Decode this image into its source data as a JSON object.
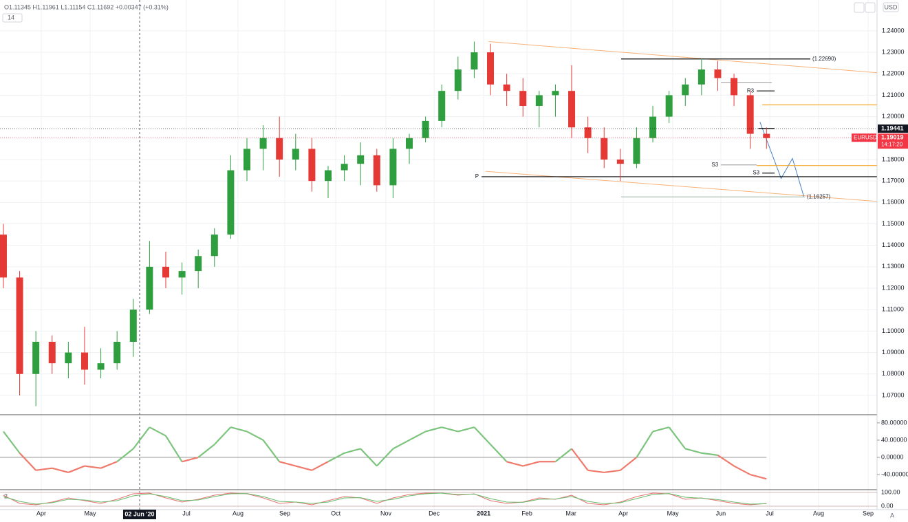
{
  "header": {
    "ohlc": "O1.11345 H1.11961 L1.11154 C1.11692 +0.00347 (+0.31%)",
    "length": "14",
    "currency": "USD",
    "auto": "A"
  },
  "chart_data": {
    "type": "candlestick",
    "symbol": "EURUSD",
    "countdown": "14:17:20",
    "up_color": "#2e9e3e",
    "down_color": "#e53935",
    "open": [
      1.145,
      1.125,
      1.08,
      1.095,
      1.085,
      1.09,
      1.082,
      1.085,
      1.095,
      1.11,
      1.13,
      1.125,
      1.128,
      1.135,
      1.145,
      1.175,
      1.185,
      1.19,
      1.18,
      1.185,
      1.17,
      1.175,
      1.178,
      1.182,
      1.168,
      1.185,
      1.19,
      1.198,
      1.212,
      1.222,
      1.23,
      1.215,
      1.212,
      1.205,
      1.21,
      1.212,
      1.195,
      1.19,
      1.18,
      1.178,
      1.19,
      1.2,
      1.21,
      1.215,
      1.222,
      1.218,
      1.21,
      1.192
    ],
    "high": [
      1.15,
      1.128,
      1.1,
      1.098,
      1.095,
      1.102,
      1.092,
      1.1,
      1.115,
      1.142,
      1.137,
      1.132,
      1.138,
      1.148,
      1.182,
      1.19,
      1.196,
      1.2,
      1.192,
      1.19,
      1.177,
      1.182,
      1.188,
      1.185,
      1.19,
      1.192,
      1.2,
      1.215,
      1.228,
      1.235,
      1.234,
      1.22,
      1.218,
      1.212,
      1.215,
      1.224,
      1.2,
      1.195,
      1.185,
      1.195,
      1.205,
      1.212,
      1.218,
      1.227,
      1.226,
      1.22,
      1.212,
      1.195
    ],
    "low": [
      1.12,
      1.07,
      1.065,
      1.08,
      1.078,
      1.075,
      1.078,
      1.082,
      1.088,
      1.108,
      1.12,
      1.117,
      1.12,
      1.13,
      1.143,
      1.17,
      1.175,
      1.172,
      1.175,
      1.165,
      1.162,
      1.17,
      1.168,
      1.165,
      1.162,
      1.178,
      1.188,
      1.195,
      1.208,
      1.218,
      1.21,
      1.205,
      1.2,
      1.195,
      1.2,
      1.19,
      1.183,
      1.176,
      1.17,
      1.176,
      1.188,
      1.197,
      1.205,
      1.21,
      1.212,
      1.205,
      1.185,
      1.185
    ],
    "close": [
      1.125,
      1.08,
      1.095,
      1.085,
      1.09,
      1.082,
      1.085,
      1.095,
      1.11,
      1.13,
      1.125,
      1.128,
      1.135,
      1.145,
      1.175,
      1.185,
      1.19,
      1.18,
      1.185,
      1.17,
      1.175,
      1.178,
      1.182,
      1.168,
      1.185,
      1.19,
      1.198,
      1.212,
      1.222,
      1.23,
      1.215,
      1.212,
      1.205,
      1.21,
      1.212,
      1.195,
      1.19,
      1.18,
      1.178,
      1.19,
      1.2,
      1.21,
      1.215,
      1.222,
      1.218,
      1.21,
      1.192,
      1.19
    ],
    "xlim": [
      -0.21,
      53.81
    ],
    "xticks": [
      {
        "value": 2.33,
        "label": "Apr"
      },
      {
        "value": 5.34,
        "label": "May"
      },
      {
        "value": 11.27,
        "label": "Jul"
      },
      {
        "value": 14.45,
        "label": "Aug"
      },
      {
        "value": 17.33,
        "label": "Sep"
      },
      {
        "value": 20.47,
        "label": "Oct"
      },
      {
        "value": 23.56,
        "label": "Nov"
      },
      {
        "value": 26.53,
        "label": "Dec"
      },
      {
        "value": 29.58,
        "label": "2021"
      },
      {
        "value": 32.25,
        "label": "Feb"
      },
      {
        "value": 34.96,
        "label": "Mar"
      },
      {
        "value": 38.18,
        "label": "Apr"
      },
      {
        "value": 41.23,
        "label": "May"
      },
      {
        "value": 44.19,
        "label": "Jun"
      },
      {
        "value": 47.2,
        "label": "Jul"
      },
      {
        "value": 50.21,
        "label": "Aug"
      },
      {
        "value": 53.26,
        "label": "Sep"
      }
    ],
    "crosshair": {
      "value": 8.39,
      "label": "02 Jun '20"
    },
    "ylim": [
      1.061,
      1.2544
    ],
    "yticks": [
      {
        "value": 1.07,
        "label": "1.07000"
      },
      {
        "value": 1.08,
        "label": "1.08000"
      },
      {
        "value": 1.09,
        "label": "1.09000"
      },
      {
        "value": 1.1,
        "label": "1.10000"
      },
      {
        "value": 1.11,
        "label": "1.11000"
      },
      {
        "value": 1.12,
        "label": "1.12000"
      },
      {
        "value": 1.13,
        "label": "1.13000"
      },
      {
        "value": 1.14,
        "label": "1.14000"
      },
      {
        "value": 1.15,
        "label": "1.15000"
      },
      {
        "value": 1.16,
        "label": "1.16000"
      },
      {
        "value": 1.17,
        "label": "1.17000"
      },
      {
        "value": 1.18,
        "label": "1.18000"
      },
      {
        "value": 1.19,
        "label": "1.19000"
      },
      {
        "value": 1.2,
        "label": "1.20000"
      },
      {
        "value": 1.21,
        "label": "1.21000"
      },
      {
        "value": 1.22,
        "label": "1.22000"
      },
      {
        "value": 1.23,
        "label": "1.23000"
      },
      {
        "value": 1.24,
        "label": "1.24000"
      }
    ],
    "grid": true,
    "price_tags": [
      {
        "value": 1.19441,
        "color": "#131722"
      },
      {
        "value": 1.19019,
        "color": "#f23645"
      }
    ],
    "levels": [
      {
        "value": 1.2269,
        "from": 38.05,
        "to": 49.7,
        "color": "#000000",
        "label": "(1.22690)"
      },
      {
        "value": 1.16257,
        "from": 38.05,
        "to": 49.36,
        "color": "#9fb8a8",
        "label": "(1.16257)"
      },
      {
        "value": 1.172,
        "from": 29.45,
        "to": 53.8,
        "color": "#000000",
        "label": "P"
      },
      {
        "value": 1.216,
        "from": 44.2,
        "to": 47.33,
        "color": "#aaaaaa"
      },
      {
        "value": 1.212,
        "from": 46.4,
        "to": 47.5,
        "color": "#000000",
        "label": "R3"
      },
      {
        "value": 1.2055,
        "from": 46.74,
        "to": 53.8,
        "color": "#f5a623"
      },
      {
        "value": 1.1775,
        "from": 44.2,
        "to": 46.4,
        "color": "#aaaaaa",
        "label": "S3"
      },
      {
        "value": 1.1772,
        "from": 46.4,
        "to": 53.8,
        "color": "#f5a623"
      },
      {
        "value": 1.1737,
        "from": 46.74,
        "to": 47.5,
        "color": "#000000",
        "label": "S3"
      },
      {
        "value": 1.1945,
        "from": 46.5,
        "to": 47.5,
        "color": "#000000"
      }
    ],
    "trendlines": [
      {
        "color": "#f7b27a",
        "x": [
          29.9,
          53.8
        ],
        "y": [
          1.235,
          1.2205
        ]
      },
      {
        "color": "#f7b27a",
        "x": [
          29.7,
          53.8
        ],
        "y": [
          1.1745,
          1.1605
        ]
      },
      {
        "color": "#4a7fc1",
        "x": [
          46.6,
          47.9,
          48.6,
          49.3
        ],
        "y": [
          1.1975,
          1.1712,
          1.1805,
          1.1628
        ]
      }
    ],
    "oscillator": {
      "ylim": [
        -75,
        99
      ],
      "yticks": [
        {
          "value": 80,
          "label": "80.00000"
        },
        {
          "value": 40,
          "label": "40.00000"
        },
        {
          "value": 0,
          "label": "0.00000"
        },
        {
          "value": -40,
          "label": "-40.00000"
        }
      ],
      "up_color": "#7cc47c",
      "down_color": "#ef7a6c",
      "values": [
        60,
        10,
        -30,
        -25,
        -35,
        -20,
        -25,
        -10,
        20,
        70,
        50,
        -10,
        0,
        30,
        70,
        60,
        40,
        -10,
        -20,
        -30,
        -10,
        10,
        20,
        -20,
        20,
        40,
        60,
        70,
        60,
        70,
        30,
        -10,
        -20,
        -10,
        -10,
        20,
        -30,
        -35,
        -30,
        0,
        60,
        70,
        20,
        10,
        5,
        -20,
        -40,
        -50
      ]
    },
    "stochastic": {
      "label": "2",
      "ylim": [
        -25,
        120
      ],
      "yticks": [
        {
          "value": 100,
          "label": "100.00"
        },
        {
          "value": 0,
          "label": "0.00"
        }
      ],
      "series": [
        {
          "color": "#e57373",
          "values": [
            80,
            20,
            10,
            30,
            60,
            40,
            20,
            50,
            90,
            95,
            60,
            30,
            50,
            80,
            95,
            90,
            60,
            20,
            30,
            10,
            40,
            70,
            60,
            20,
            60,
            85,
            95,
            95,
            80,
            90,
            40,
            20,
            30,
            60,
            50,
            80,
            20,
            10,
            30,
            70,
            95,
            90,
            50,
            60,
            40,
            20,
            10,
            20
          ]
        },
        {
          "color": "#66bb6a",
          "values": [
            70,
            35,
            15,
            25,
            50,
            45,
            30,
            40,
            75,
            90,
            70,
            40,
            45,
            70,
            90,
            92,
            70,
            35,
            30,
            20,
            30,
            60,
            62,
            35,
            50,
            75,
            90,
            95,
            85,
            88,
            55,
            30,
            28,
            50,
            52,
            70,
            35,
            18,
            25,
            55,
            85,
            92,
            65,
            58,
            48,
            30,
            15,
            18
          ]
        }
      ]
    }
  }
}
